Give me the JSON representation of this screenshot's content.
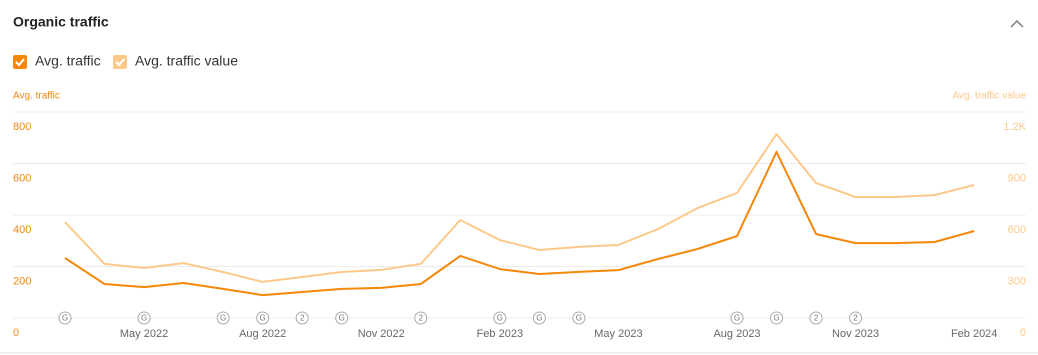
{
  "title": "Organic traffic",
  "chart_data": {
    "type": "line",
    "y_label": "Avg. traffic",
    "y2_label": "Avg. traffic value",
    "categories": [
      null,
      null,
      "May 2022",
      null,
      null,
      "Aug 2022",
      null,
      null,
      "Nov 2022",
      null,
      null,
      "Feb 2023",
      null,
      null,
      "May 2023",
      null,
      null,
      "Aug 2023",
      null,
      null,
      "Nov 2023",
      null,
      null,
      "Feb 2024"
    ],
    "markers": [
      "G",
      null,
      "G",
      null,
      "G",
      "G",
      "2",
      "G",
      null,
      "2",
      null,
      "G",
      "G",
      "G",
      null,
      null,
      null,
      "G",
      "G",
      "2",
      "2",
      null,
      null,
      null
    ],
    "series": [
      {
        "name": "Avg. traffic",
        "color": "#f5870a",
        "values": [
          233,
          132,
          120,
          136,
          113,
          89,
          101,
          113,
          117,
          132,
          241,
          190,
          171,
          179,
          186,
          229,
          268,
          318,
          645,
          326,
          291,
          291,
          295,
          338
        ]
      },
      {
        "name": "Avg. traffic value",
        "color": "#fcc98a",
        "axis": "y2",
        "values": [
          559,
          315,
          291,
          320,
          268,
          210,
          239,
          268,
          280,
          315,
          571,
          454,
          396,
          414,
          425,
          518,
          640,
          728,
          1072,
          786,
          705,
          705,
          716,
          775
        ]
      }
    ],
    "ylim": [
      0,
      800
    ],
    "yticks": [
      0,
      200,
      400,
      600,
      800
    ],
    "y2lim": [
      0,
      1200
    ],
    "y2ticks": [
      0,
      300,
      600,
      900,
      {
        "value": 1200,
        "label": "1.2K"
      }
    ],
    "grid": true
  }
}
